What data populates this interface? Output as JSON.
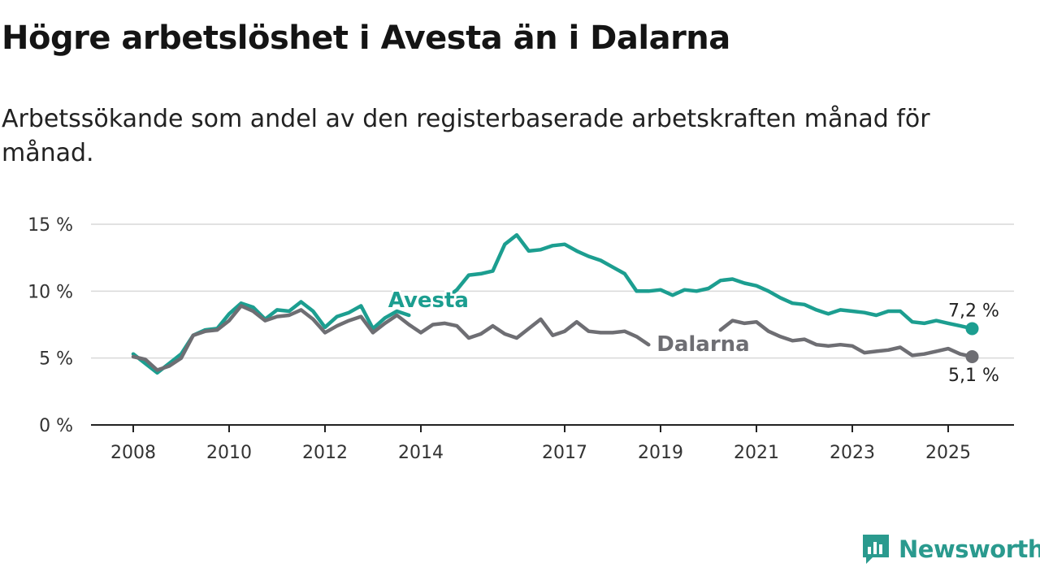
{
  "title": "Högre arbetslöshet i Avesta än i Dalarna",
  "subtitle": "Arbetssökande som andel av den registerbaserade arbetskraften månad för månad.",
  "brand": {
    "name": "Newsworthy",
    "color": "#2a9a8e",
    "icon": "bar-chart-speech-bubble-icon"
  },
  "chart_data": {
    "type": "line",
    "title": "Högre arbetslöshet i Avesta än i Dalarna",
    "xlabel": "",
    "ylabel": "",
    "x_ticks": [
      "2008",
      "2010",
      "2012",
      "2014",
      "2017",
      "2019",
      "2021",
      "2023",
      "2025"
    ],
    "y_ticks": [
      "0 %",
      "5 %",
      "10 %",
      "15 %"
    ],
    "ylim": [
      0,
      15
    ],
    "xlim": [
      "2008-01",
      "2025-12"
    ],
    "grid": "horizontal",
    "series": [
      {
        "name": "Avesta",
        "color": "#1c9e90",
        "end_label": "7,2 %",
        "points": [
          [
            "2008-01",
            5.3
          ],
          [
            "2008-04",
            4.6
          ],
          [
            "2008-07",
            3.9
          ],
          [
            "2008-10",
            4.6
          ],
          [
            "2009-01",
            5.3
          ],
          [
            "2009-04",
            6.7
          ],
          [
            "2009-07",
            7.1
          ],
          [
            "2009-10",
            7.2
          ],
          [
            "2010-01",
            8.3
          ],
          [
            "2010-04",
            9.1
          ],
          [
            "2010-07",
            8.8
          ],
          [
            "2010-10",
            7.9
          ],
          [
            "2011-01",
            8.6
          ],
          [
            "2011-04",
            8.5
          ],
          [
            "2011-07",
            9.2
          ],
          [
            "2011-10",
            8.5
          ],
          [
            "2012-01",
            7.3
          ],
          [
            "2012-04",
            8.1
          ],
          [
            "2012-07",
            8.4
          ],
          [
            "2012-10",
            8.9
          ],
          [
            "2013-01",
            7.2
          ],
          [
            "2013-04",
            8.0
          ],
          [
            "2013-07",
            8.5
          ],
          [
            "2013-10",
            8.2
          ],
          null,
          [
            "2014-07",
            9.4
          ],
          [
            "2014-10",
            10.1
          ],
          [
            "2015-01",
            11.2
          ],
          [
            "2015-04",
            11.3
          ],
          [
            "2015-07",
            11.5
          ],
          [
            "2015-10",
            13.5
          ],
          [
            "2016-01",
            14.2
          ],
          [
            "2016-04",
            13.0
          ],
          [
            "2016-07",
            13.1
          ],
          [
            "2016-10",
            13.4
          ],
          [
            "2017-01",
            13.5
          ],
          [
            "2017-04",
            13.0
          ],
          [
            "2017-07",
            12.6
          ],
          [
            "2017-10",
            12.3
          ],
          [
            "2018-01",
            11.8
          ],
          [
            "2018-04",
            11.3
          ],
          [
            "2018-07",
            10.0
          ],
          [
            "2018-10",
            10.0
          ],
          [
            "2019-01",
            10.1
          ],
          [
            "2019-04",
            9.7
          ],
          [
            "2019-07",
            10.1
          ],
          [
            "2019-10",
            10.0
          ],
          [
            "2020-01",
            10.2
          ],
          [
            "2020-04",
            10.8
          ],
          [
            "2020-07",
            10.9
          ],
          [
            "2020-10",
            10.6
          ],
          [
            "2021-01",
            10.4
          ],
          [
            "2021-04",
            10.0
          ],
          [
            "2021-07",
            9.5
          ],
          [
            "2021-10",
            9.1
          ],
          [
            "2022-01",
            9.0
          ],
          [
            "2022-04",
            8.6
          ],
          [
            "2022-07",
            8.3
          ],
          [
            "2022-10",
            8.6
          ],
          [
            "2023-01",
            8.5
          ],
          [
            "2023-04",
            8.4
          ],
          [
            "2023-07",
            8.2
          ],
          [
            "2023-10",
            8.5
          ],
          [
            "2024-01",
            8.5
          ],
          [
            "2024-04",
            7.7
          ],
          [
            "2024-07",
            7.6
          ],
          [
            "2024-10",
            7.8
          ],
          [
            "2025-01",
            7.6
          ],
          [
            "2025-04",
            7.4
          ],
          [
            "2025-07",
            7.2
          ]
        ]
      },
      {
        "name": "Dalarna",
        "color": "#6e6e73",
        "end_label": "5,1 %",
        "points": [
          [
            "2008-01",
            5.1
          ],
          [
            "2008-04",
            4.9
          ],
          [
            "2008-07",
            4.1
          ],
          [
            "2008-10",
            4.4
          ],
          [
            "2009-01",
            5.0
          ],
          [
            "2009-04",
            6.7
          ],
          [
            "2009-07",
            7.0
          ],
          [
            "2009-10",
            7.1
          ],
          [
            "2010-01",
            7.8
          ],
          [
            "2010-04",
            8.9
          ],
          [
            "2010-07",
            8.5
          ],
          [
            "2010-10",
            7.8
          ],
          [
            "2011-01",
            8.1
          ],
          [
            "2011-04",
            8.2
          ],
          [
            "2011-07",
            8.6
          ],
          [
            "2011-10",
            7.9
          ],
          [
            "2012-01",
            6.9
          ],
          [
            "2012-04",
            7.4
          ],
          [
            "2012-07",
            7.8
          ],
          [
            "2012-10",
            8.1
          ],
          [
            "2013-01",
            6.9
          ],
          [
            "2013-04",
            7.6
          ],
          [
            "2013-07",
            8.2
          ],
          [
            "2013-10",
            7.5
          ],
          [
            "2014-01",
            6.9
          ],
          [
            "2014-04",
            7.5
          ],
          [
            "2014-07",
            7.6
          ],
          [
            "2014-10",
            7.4
          ],
          [
            "2015-01",
            6.5
          ],
          [
            "2015-04",
            6.8
          ],
          [
            "2015-07",
            7.4
          ],
          [
            "2015-10",
            6.8
          ],
          [
            "2016-01",
            6.5
          ],
          [
            "2016-04",
            7.2
          ],
          [
            "2016-07",
            7.9
          ],
          [
            "2016-10",
            6.7
          ],
          [
            "2017-01",
            7.0
          ],
          [
            "2017-04",
            7.7
          ],
          [
            "2017-07",
            7.0
          ],
          [
            "2017-10",
            6.9
          ],
          [
            "2018-01",
            6.9
          ],
          [
            "2018-04",
            7.0
          ],
          [
            "2018-07",
            6.6
          ],
          [
            "2018-10",
            6.0
          ],
          null,
          [
            "2020-04",
            7.1
          ],
          [
            "2020-07",
            7.8
          ],
          [
            "2020-10",
            7.6
          ],
          [
            "2021-01",
            7.7
          ],
          [
            "2021-04",
            7.0
          ],
          [
            "2021-07",
            6.6
          ],
          [
            "2021-10",
            6.3
          ],
          [
            "2022-01",
            6.4
          ],
          [
            "2022-04",
            6.0
          ],
          [
            "2022-07",
            5.9
          ],
          [
            "2022-10",
            6.0
          ],
          [
            "2023-01",
            5.9
          ],
          [
            "2023-04",
            5.4
          ],
          [
            "2023-07",
            5.5
          ],
          [
            "2023-10",
            5.6
          ],
          [
            "2024-01",
            5.8
          ],
          [
            "2024-04",
            5.2
          ],
          [
            "2024-07",
            5.3
          ],
          [
            "2024-10",
            5.5
          ],
          [
            "2025-01",
            5.7
          ],
          [
            "2025-04",
            5.3
          ],
          [
            "2025-07",
            5.1
          ]
        ]
      }
    ]
  }
}
